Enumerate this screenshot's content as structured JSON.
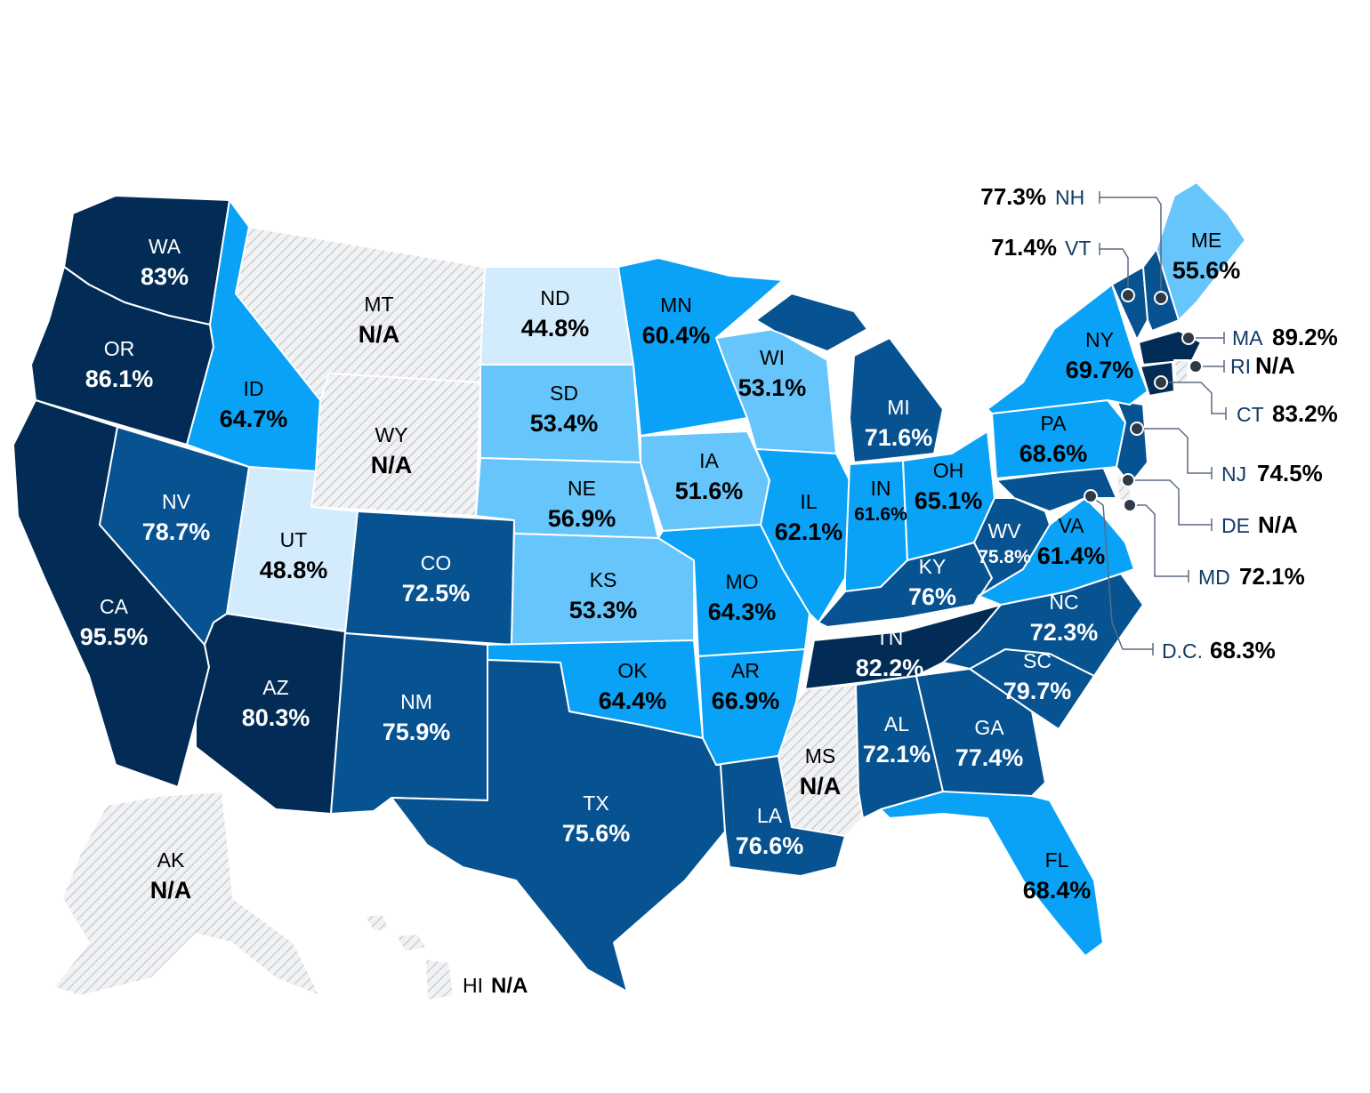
{
  "colors": {
    "na": "url(#hatch)",
    "lightest": "#d2ecfd",
    "light": "#66c5fb",
    "medium": "#0aa2f7",
    "dark": "#075391",
    "darkest": "#022c55",
    "text_dark": "#000000",
    "text_light": "#ffffff"
  },
  "states": {
    "WA": {
      "abbr": "WA",
      "value": "83%",
      "tier": "darkest"
    },
    "OR": {
      "abbr": "OR",
      "value": "86.1%",
      "tier": "darkest"
    },
    "CA": {
      "abbr": "CA",
      "value": "95.5%",
      "tier": "darkest"
    },
    "ID": {
      "abbr": "ID",
      "value": "64.7%",
      "tier": "medium"
    },
    "NV": {
      "abbr": "NV",
      "value": "78.7%",
      "tier": "dark"
    },
    "MT": {
      "abbr": "MT",
      "value": "N/A",
      "tier": "na"
    },
    "WY": {
      "abbr": "WY",
      "value": "N/A",
      "tier": "na"
    },
    "UT": {
      "abbr": "UT",
      "value": "48.8%",
      "tier": "lightest"
    },
    "AZ": {
      "abbr": "AZ",
      "value": "80.3%",
      "tier": "darkest"
    },
    "CO": {
      "abbr": "CO",
      "value": "72.5%",
      "tier": "dark"
    },
    "NM": {
      "abbr": "NM",
      "value": "75.9%",
      "tier": "dark"
    },
    "ND": {
      "abbr": "ND",
      "value": "44.8%",
      "tier": "lightest"
    },
    "SD": {
      "abbr": "SD",
      "value": "53.4%",
      "tier": "light"
    },
    "NE": {
      "abbr": "NE",
      "value": "56.9%",
      "tier": "light"
    },
    "KS": {
      "abbr": "KS",
      "value": "53.3%",
      "tier": "light"
    },
    "OK": {
      "abbr": "OK",
      "value": "64.4%",
      "tier": "medium"
    },
    "TX": {
      "abbr": "TX",
      "value": "75.6%",
      "tier": "dark"
    },
    "MN": {
      "abbr": "MN",
      "value": "60.4%",
      "tier": "medium"
    },
    "IA": {
      "abbr": "IA",
      "value": "51.6%",
      "tier": "light"
    },
    "MO": {
      "abbr": "MO",
      "value": "64.3%",
      "tier": "medium"
    },
    "AR": {
      "abbr": "AR",
      "value": "66.9%",
      "tier": "medium"
    },
    "LA": {
      "abbr": "LA",
      "value": "76.6%",
      "tier": "dark"
    },
    "WI": {
      "abbr": "WI",
      "value": "53.1%",
      "tier": "light"
    },
    "IL": {
      "abbr": "IL",
      "value": "62.1%",
      "tier": "medium"
    },
    "MI": {
      "abbr": "MI",
      "value": "71.6%",
      "tier": "dark"
    },
    "IN": {
      "abbr": "IN",
      "value": "61.6%",
      "tier": "medium"
    },
    "OH": {
      "abbr": "OH",
      "value": "65.1%",
      "tier": "medium"
    },
    "KY": {
      "abbr": "KY",
      "value": "76%",
      "tier": "dark"
    },
    "TN": {
      "abbr": "TN",
      "value": "82.2%",
      "tier": "darkest"
    },
    "MS": {
      "abbr": "MS",
      "value": "N/A",
      "tier": "na"
    },
    "AL": {
      "abbr": "AL",
      "value": "72.1%",
      "tier": "dark"
    },
    "GA": {
      "abbr": "GA",
      "value": "77.4%",
      "tier": "dark"
    },
    "FL": {
      "abbr": "FL",
      "value": "68.4%",
      "tier": "medium"
    },
    "SC": {
      "abbr": "SC",
      "value": "79.7%",
      "tier": "dark"
    },
    "NC": {
      "abbr": "NC",
      "value": "72.3%",
      "tier": "dark"
    },
    "VA": {
      "abbr": "VA",
      "value": "61.4%",
      "tier": "medium"
    },
    "WV": {
      "abbr": "WV",
      "value": "75.8%",
      "tier": "dark"
    },
    "PA": {
      "abbr": "PA",
      "value": "68.6%",
      "tier": "medium"
    },
    "NY": {
      "abbr": "NY",
      "value": "69.7%",
      "tier": "medium"
    },
    "ME": {
      "abbr": "ME",
      "value": "55.6%",
      "tier": "light"
    },
    "AK": {
      "abbr": "AK",
      "value": "N/A",
      "tier": "na"
    },
    "HI": {
      "abbr": "HI",
      "value": "N/A",
      "tier": "na"
    }
  },
  "callouts": {
    "NH": {
      "abbr": "NH",
      "value": "77.3%",
      "tier": "dark"
    },
    "VT": {
      "abbr": "VT",
      "value": "71.4%",
      "tier": "dark"
    },
    "MA": {
      "abbr": "MA",
      "value": "89.2%",
      "tier": "darkest"
    },
    "RI": {
      "abbr": "RI",
      "value": "N/A",
      "tier": "na"
    },
    "CT": {
      "abbr": "CT",
      "value": "83.2%",
      "tier": "darkest"
    },
    "NJ": {
      "abbr": "NJ",
      "value": "74.5%",
      "tier": "dark"
    },
    "DE": {
      "abbr": "DE",
      "value": "N/A",
      "tier": "na"
    },
    "MD": {
      "abbr": "MD",
      "value": "72.1%",
      "tier": "dark"
    },
    "DC": {
      "abbr": "D.C.",
      "value": "68.3%",
      "tier": "medium"
    }
  }
}
